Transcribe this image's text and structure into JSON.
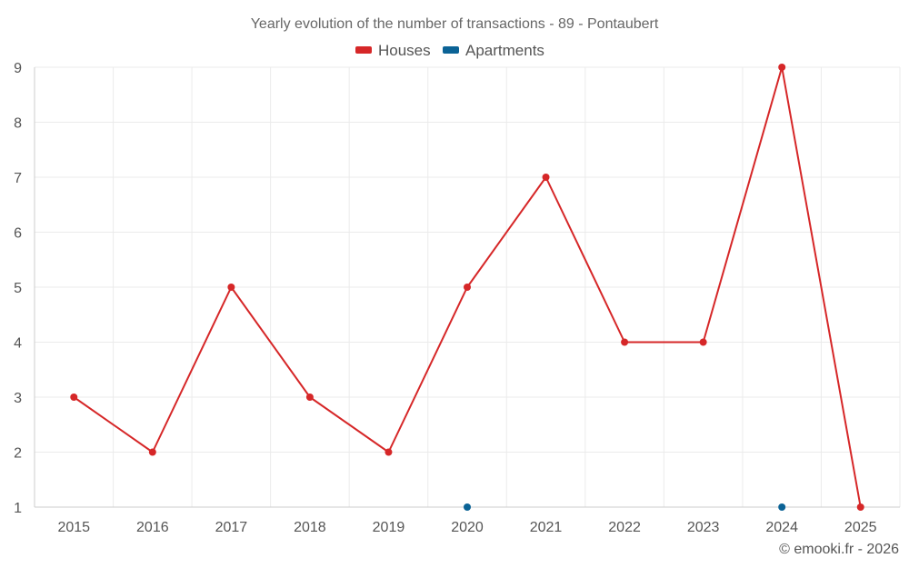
{
  "chart_data": {
    "type": "line",
    "title": "Yearly evolution of the number of transactions - 89 - Pontaubert",
    "xlabel": "",
    "ylabel": "",
    "categories": [
      "2015",
      "2016",
      "2017",
      "2018",
      "2019",
      "2020",
      "2021",
      "2022",
      "2023",
      "2024",
      "2025"
    ],
    "ylim": [
      1,
      9
    ],
    "yticks": [
      "1",
      "2",
      "3",
      "4",
      "5",
      "6",
      "7",
      "8",
      "9"
    ],
    "grid": true,
    "legend_position": "top-center",
    "series": [
      {
        "name": "Houses",
        "color": "#d62728",
        "values": [
          3,
          2,
          5,
          3,
          2,
          5,
          7,
          4,
          4,
          9,
          1
        ],
        "line": true
      },
      {
        "name": "Apartments",
        "color": "#0b6396",
        "values": [
          null,
          null,
          null,
          null,
          null,
          1,
          null,
          null,
          null,
          1,
          null
        ],
        "line": false
      }
    ],
    "credit": "© emooki.fr - 2026"
  }
}
